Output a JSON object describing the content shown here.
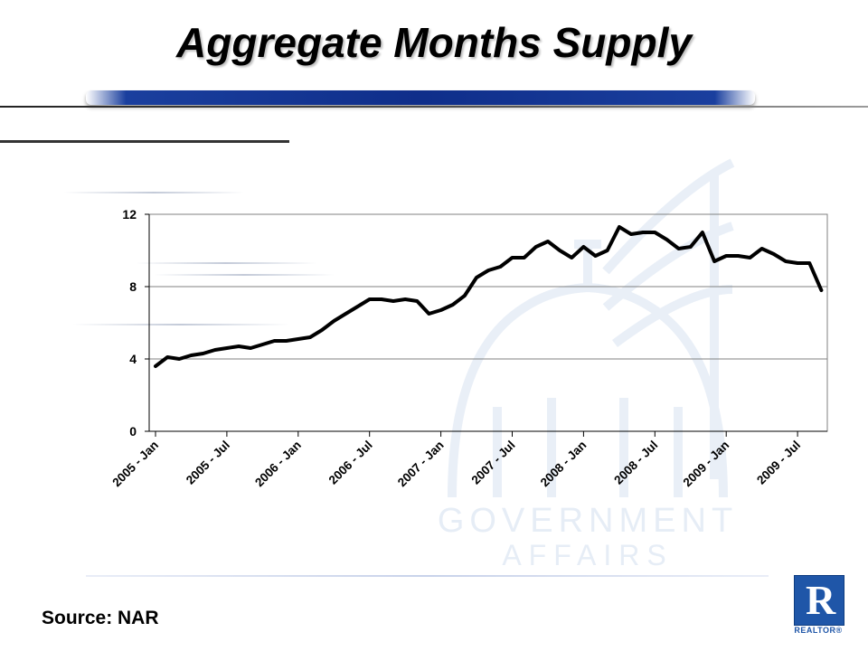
{
  "title": "Aggregate Months Supply",
  "source": "Source: NAR",
  "watermark": {
    "line1": "GOVERNMENT",
    "line2": "AFFAIRS"
  },
  "logo": {
    "letter": "R",
    "word": "REALTOR®"
  },
  "colors": {
    "line": "#000000",
    "accent_bar": "#0f2e8a",
    "logo_blue": "#1f56a8",
    "grid": "#808080"
  },
  "chart_data": {
    "type": "line",
    "title": "",
    "xlabel": "",
    "ylabel": "",
    "ylim": [
      0,
      12
    ],
    "yticks": [
      "0",
      "4",
      "8",
      "12"
    ],
    "grid": true,
    "legend": "none",
    "xtick_labels": [
      "2005 - Jan",
      "2005 - Jul",
      "2006 - Jan",
      "2006 - Jul",
      "2007 - Jan",
      "2007 - Jul",
      "2008 - Jan",
      "2008 - Jul",
      "2009 - Jan",
      "2009 - Jul"
    ],
    "x": [
      "2005 - Jan",
      "2005 - Feb",
      "2005 - Mar",
      "2005 - Apr",
      "2005 - May",
      "2005 - Jun",
      "2005 - Jul",
      "2005 - Aug",
      "2005 - Sep",
      "2005 - Oct",
      "2005 - Nov",
      "2005 - Dec",
      "2006 - Jan",
      "2006 - Feb",
      "2006 - Mar",
      "2006 - Apr",
      "2006 - May",
      "2006 - Jun",
      "2006 - Jul",
      "2006 - Aug",
      "2006 - Sep",
      "2006 - Oct",
      "2006 - Nov",
      "2006 - Dec",
      "2007 - Jan",
      "2007 - Feb",
      "2007 - Mar",
      "2007 - Apr",
      "2007 - May",
      "2007 - Jun",
      "2007 - Jul",
      "2007 - Aug",
      "2007 - Sep",
      "2007 - Oct",
      "2007 - Nov",
      "2007 - Dec",
      "2008 - Jan",
      "2008 - Feb",
      "2008 - Mar",
      "2008 - Apr",
      "2008 - May",
      "2008 - Jun",
      "2008 - Jul",
      "2008 - Aug",
      "2008 - Sep",
      "2008 - Oct",
      "2008 - Nov",
      "2008 - Dec",
      "2009 - Jan",
      "2009 - Feb",
      "2009 - Mar",
      "2009 - Apr",
      "2009 - May",
      "2009 - Jun",
      "2009 - Jul",
      "2009 - Aug",
      "2009 - Sep"
    ],
    "values": [
      3.6,
      4.1,
      4.0,
      4.2,
      4.3,
      4.5,
      4.6,
      4.7,
      4.6,
      4.8,
      5.0,
      5.0,
      5.1,
      5.2,
      5.6,
      6.1,
      6.5,
      6.9,
      7.3,
      7.3,
      7.2,
      7.3,
      7.2,
      6.5,
      6.7,
      7.0,
      7.5,
      8.5,
      8.9,
      9.1,
      9.6,
      9.6,
      10.2,
      10.5,
      10.0,
      9.6,
      10.2,
      9.7,
      10.0,
      11.3,
      10.9,
      11.0,
      11.0,
      10.6,
      10.1,
      10.2,
      11.0,
      9.4,
      9.7,
      9.7,
      9.6,
      10.1,
      9.8,
      9.4,
      9.3,
      9.3,
      7.8
    ]
  }
}
